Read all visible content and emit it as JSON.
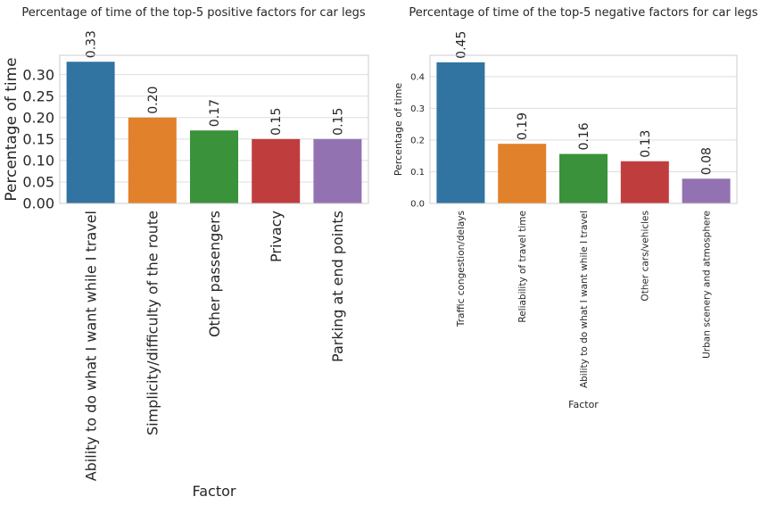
{
  "chart_data": [
    {
      "type": "bar",
      "title": "Percentage of time of the top-5 positive factors for car legs",
      "xlabel": "Factor",
      "ylabel": "Percentage of time",
      "categories": [
        "Ability to do what I want while I travel",
        "Simplicity/difficulty of the route",
        "Other passengers",
        "Privacy",
        "Parking at end points"
      ],
      "values": [
        0.33,
        0.2,
        0.17,
        0.15,
        0.15
      ],
      "value_labels": [
        "0.33",
        "0.20",
        "0.17",
        "0.15",
        "0.15"
      ],
      "ylim": [
        0,
        0.345
      ],
      "yticks": [
        0.0,
        0.05,
        0.1,
        0.15,
        0.2,
        0.25,
        0.3
      ],
      "ytick_labels": [
        "0.00",
        "0.05",
        "0.10",
        "0.15",
        "0.20",
        "0.25",
        "0.30"
      ],
      "grid": true,
      "colors": [
        "#3274a1",
        "#e1812c",
        "#3a923a",
        "#c03d3e",
        "#9372b2"
      ]
    },
    {
      "type": "bar",
      "title": "Percentage of time of the top-5 negative factors for car legs",
      "xlabel": "Factor",
      "ylabel": "Percentage of time",
      "categories": [
        "Traffic congestion/delays",
        "Reliability of travel time",
        "Ability to do what I want while I travel",
        "Other cars/vehicles",
        "Urban scenery and atmosphere"
      ],
      "values": [
        0.445,
        0.188,
        0.156,
        0.133,
        0.078
      ],
      "value_labels": [
        "0.45",
        "0.19",
        "0.16",
        "0.13",
        "0.08"
      ],
      "ylim": [
        0,
        0.467
      ],
      "yticks": [
        0.0,
        0.1,
        0.2,
        0.3,
        0.4
      ],
      "ytick_labels": [
        "0.0",
        "0.1",
        "0.2",
        "0.3",
        "0.4"
      ],
      "grid": true,
      "colors": [
        "#3274a1",
        "#e1812c",
        "#3a923a",
        "#c03d3e",
        "#9372b2"
      ]
    }
  ]
}
